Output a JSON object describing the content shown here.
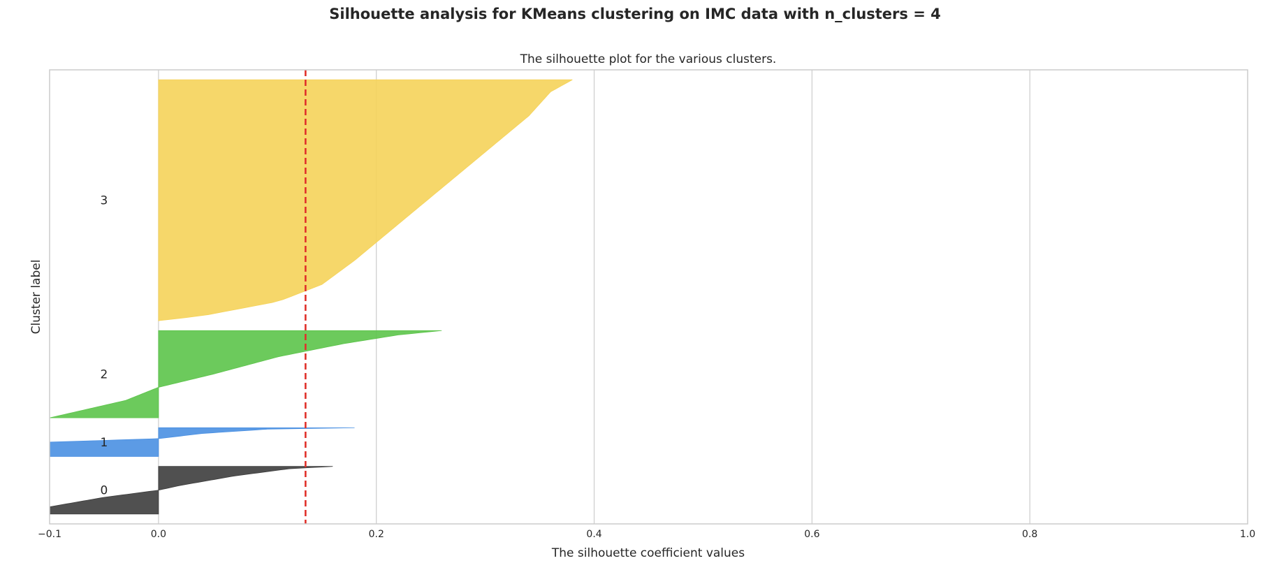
{
  "figure": {
    "suptitle": "Silhouette analysis for KMeans clustering on IMC data with n_clusters = 4"
  },
  "chart_data": {
    "type": "area",
    "title": "The silhouette plot for the various clusters.",
    "xlabel": "The silhouette coefficient values",
    "ylabel": "Cluster label",
    "xlim": [
      -0.1,
      1.0
    ],
    "xticks": [
      -0.1,
      0.0,
      0.2,
      0.4,
      0.6,
      0.8,
      1.0
    ],
    "xtick_labels": [
      "−0.1",
      "0.0",
      "0.2",
      "0.4",
      "0.6",
      "0.8",
      "1.0"
    ],
    "grid": true,
    "average_silhouette": 0.135,
    "average_line_color": "#e0302a",
    "clusters": [
      {
        "label": "0",
        "color": "#3d3d3d",
        "n_samples": 48,
        "silhouette_profile": [
          [
            0.0,
            -0.1
          ],
          [
            0.15,
            -0.1
          ],
          [
            0.35,
            -0.05
          ],
          [
            0.5,
            0.0
          ],
          [
            0.6,
            0.02
          ],
          [
            0.8,
            0.07
          ],
          [
            0.95,
            0.12
          ],
          [
            1.0,
            0.16
          ]
        ]
      },
      {
        "label": "1",
        "color": "#4a90e2",
        "n_samples": 29,
        "silhouette_profile": [
          [
            0.0,
            -0.1
          ],
          [
            0.5,
            -0.1
          ],
          [
            0.62,
            0.0
          ],
          [
            0.8,
            0.04
          ],
          [
            0.95,
            0.1
          ],
          [
            1.0,
            0.18
          ]
        ]
      },
      {
        "label": "2",
        "color": "#5cc44a",
        "n_samples": 88,
        "silhouette_profile": [
          [
            0.0,
            -0.1
          ],
          [
            0.2,
            -0.03
          ],
          [
            0.35,
            0.0
          ],
          [
            0.5,
            0.05
          ],
          [
            0.7,
            0.11
          ],
          [
            0.85,
            0.17
          ],
          [
            0.95,
            0.22
          ],
          [
            1.0,
            0.26
          ]
        ]
      },
      {
        "label": "3",
        "color": "#f5d35a",
        "n_samples": 243,
        "silhouette_profile": [
          [
            0.0,
            0.0
          ],
          [
            0.02,
            0.04
          ],
          [
            0.08,
            0.11
          ],
          [
            0.15,
            0.15
          ],
          [
            0.25,
            0.18
          ],
          [
            0.4,
            0.22
          ],
          [
            0.55,
            0.26
          ],
          [
            0.7,
            0.3
          ],
          [
            0.85,
            0.34
          ],
          [
            0.95,
            0.36
          ],
          [
            1.0,
            0.38
          ]
        ]
      }
    ]
  }
}
